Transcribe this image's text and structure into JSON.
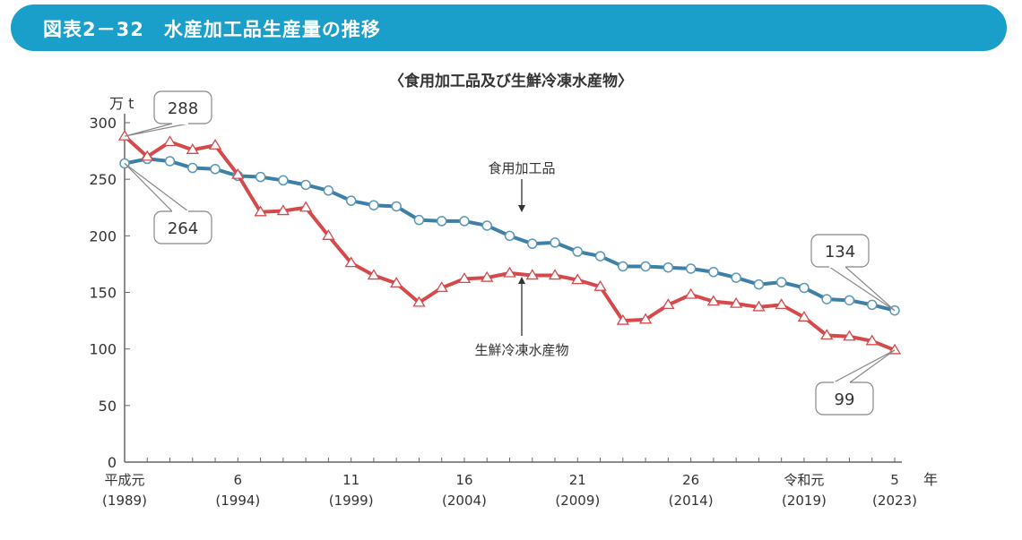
{
  "header": {
    "title": "図表2－32　水産加工品生産量の推移"
  },
  "chart_data": {
    "type": "line",
    "title": "〈食用加工品及び生鮮冷凍水産物〉",
    "ylabel": "万 t",
    "xlabel": "年",
    "ylim": [
      0,
      300
    ],
    "yticks": [
      0,
      50,
      100,
      150,
      200,
      250,
      300
    ],
    "x": [
      1989,
      1990,
      1991,
      1992,
      1993,
      1994,
      1995,
      1996,
      1997,
      1998,
      1999,
      2000,
      2001,
      2002,
      2003,
      2004,
      2005,
      2006,
      2007,
      2008,
      2009,
      2010,
      2011,
      2012,
      2013,
      2014,
      2015,
      2016,
      2017,
      2018,
      2019,
      2020,
      2021,
      2022,
      2023
    ],
    "xtick_labels": [
      {
        "x": 1989,
        "era": "平成元",
        "year": "(1989)"
      },
      {
        "x": 1994,
        "era": "6",
        "year": "(1994)"
      },
      {
        "x": 1999,
        "era": "11",
        "year": "(1999)"
      },
      {
        "x": 2004,
        "era": "16",
        "year": "(2004)"
      },
      {
        "x": 2009,
        "era": "21",
        "year": "(2009)"
      },
      {
        "x": 2014,
        "era": "26",
        "year": "(2014)"
      },
      {
        "x": 2019,
        "era": "令和元",
        "year": "(2019)"
      },
      {
        "x": 2023,
        "era": "5",
        "year": "(2023)"
      }
    ],
    "grid": false,
    "series": [
      {
        "name": "食用加工品",
        "color": "#3d7fa6",
        "marker": "circle",
        "values": [
          264,
          268,
          266,
          260,
          259,
          253,
          252,
          249,
          245,
          240,
          231,
          227,
          226,
          214,
          213,
          213,
          209,
          200,
          193,
          194,
          186,
          182,
          173,
          173,
          172,
          171,
          168,
          163,
          157,
          159,
          154,
          144,
          143,
          139,
          134
        ]
      },
      {
        "name": "生鮮冷凍水産物",
        "color": "#d6494a",
        "marker": "triangle",
        "values": [
          288,
          270,
          283,
          276,
          280,
          254,
          221,
          222,
          225,
          200,
          176,
          165,
          158,
          141,
          154,
          162,
          163,
          167,
          165,
          165,
          161,
          155,
          125,
          126,
          139,
          148,
          142,
          140,
          137,
          139,
          128,
          112,
          111,
          107,
          99
        ]
      }
    ],
    "annotations": [
      {
        "text": "288",
        "series": 1,
        "x": 1989
      },
      {
        "text": "264",
        "series": 0,
        "x": 1989
      },
      {
        "text": "134",
        "series": 0,
        "x": 2023
      },
      {
        "text": "99",
        "series": 1,
        "x": 2023
      }
    ]
  }
}
